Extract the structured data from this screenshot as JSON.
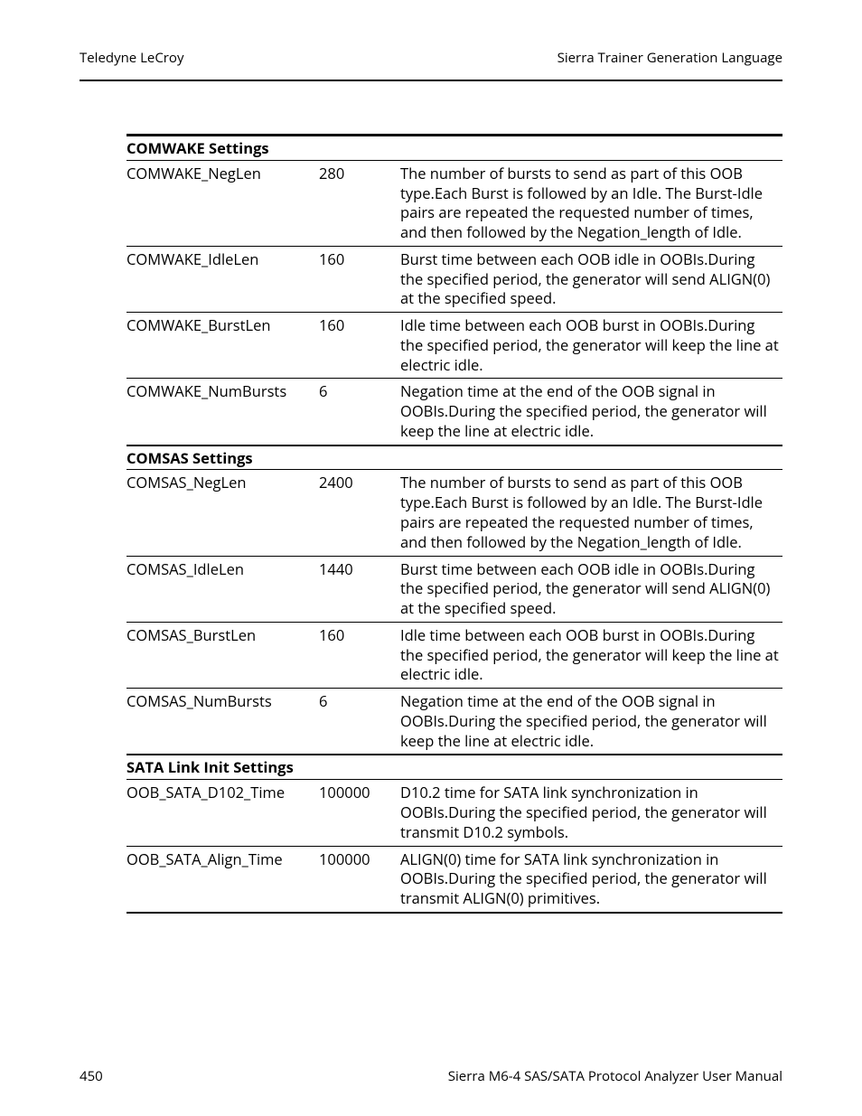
{
  "header": {
    "left": "Teledyne LeCroy",
    "right": "Sierra Trainer Generation Language"
  },
  "footer": {
    "page_number": "450",
    "manual_title": "Sierra M6-4 SAS/SATA Protocol Analyzer User Manual"
  },
  "sections": [
    {
      "title": "COMWAKE Settings",
      "rows": [
        {
          "name": "COMWAKE_NegLen",
          "value": "280",
          "desc": "The number of bursts to send as part of this OOB type.Each Burst is followed by an Idle. The Burst-Idle pairs are repeated the requested number of times, and then followed by the Negation_length of Idle."
        },
        {
          "name": "COMWAKE_IdleLen",
          "value": "160",
          "desc": "Burst time between each OOB idle in OOBIs.During the specified period, the generator will send ALIGN(0) at the specified speed."
        },
        {
          "name": "COMWAKE_BurstLen",
          "value": "160",
          "desc": "Idle time between each OOB burst in OOBIs.During the specified period, the generator will keep the line at electric idle."
        },
        {
          "name": "COMWAKE_NumBursts",
          "value": "6",
          "desc": "Negation time at the end of the OOB signal in OOBIs.During the specified period, the generator will keep the line at electric idle."
        }
      ]
    },
    {
      "title": "COMSAS Settings",
      "rows": [
        {
          "name": "COMSAS_NegLen",
          "value": "2400",
          "desc": "The number of bursts to send as part of this OOB type.Each Burst is followed by an Idle. The Burst-Idle pairs are repeated the requested number of times, and then followed by the Negation_length of Idle."
        },
        {
          "name": "COMSAS_IdleLen",
          "value": "1440",
          "desc": "Burst time between each OOB idle in OOBIs.During the specified period, the generator will send ALIGN(0) at the specified speed."
        },
        {
          "name": "COMSAS_BurstLen",
          "value": "160",
          "desc": "Idle time between each OOB burst in OOBIs.During the specified period, the generator will keep the line at electric idle."
        },
        {
          "name": "COMSAS_NumBursts",
          "value": "6",
          "desc": "Negation time at the end of the OOB signal in OOBIs.During the specified period, the generator will keep the line at electric idle."
        }
      ]
    },
    {
      "title": "SATA Link Init Settings",
      "rows": [
        {
          "name": "OOB_SATA_D102_Time",
          "value": "100000",
          "desc": "D10.2 time for SATA link synchronization in OOBIs.During the specified period, the generator will transmit D10.2 symbols."
        },
        {
          "name": "OOB_SATA_Align_Time",
          "value": "100000",
          "desc": "ALIGN(0) time for SATA link synchronization in OOBIs.During the specified period, the generator will transmit ALIGN(0) primitives."
        }
      ]
    }
  ]
}
